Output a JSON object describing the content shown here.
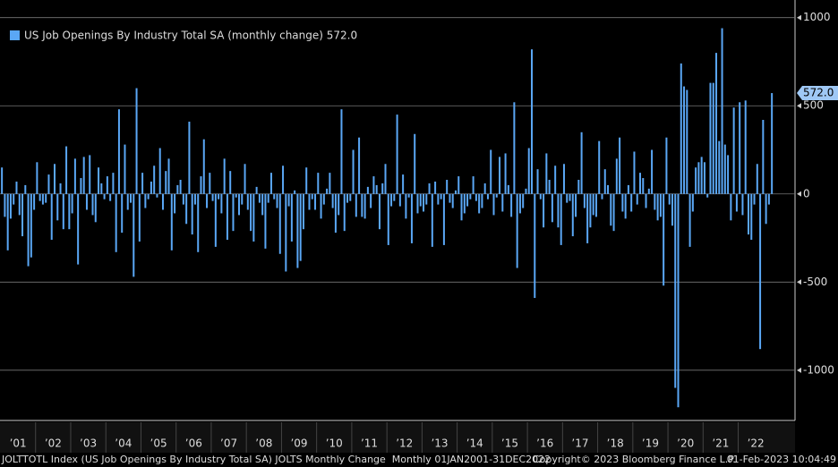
{
  "chart_data": {
    "type": "bar",
    "title": "US Job Openings By Industry Total SA (monthly change) 572.0",
    "color": "#5aa7f5",
    "year_labels": [
      "’01",
      "’02",
      "’03",
      "’04",
      "’05",
      "’06",
      "’07",
      "’08",
      "’09",
      "’10",
      "’11",
      "’12",
      "’13",
      "’14",
      "’15",
      "’16",
      "’17",
      "’18",
      "’19",
      "’20",
      "’21",
      "’22"
    ],
    "values": [
      150,
      -130,
      -320,
      -140,
      -60,
      70,
      -120,
      -240,
      50,
      -410,
      -360,
      -90,
      180,
      -40,
      -60,
      -50,
      110,
      -260,
      170,
      -150,
      60,
      -200,
      270,
      -200,
      -110,
      200,
      -400,
      90,
      210,
      -90,
      220,
      -120,
      -160,
      150,
      60,
      -30,
      100,
      -40,
      120,
      -330,
      480,
      -220,
      280,
      -90,
      -50,
      -470,
      600,
      -270,
      120,
      -80,
      -30,
      70,
      160,
      -20,
      260,
      -90,
      130,
      200,
      -320,
      -110,
      50,
      80,
      -60,
      -170,
      410,
      -230,
      -60,
      -330,
      100,
      310,
      -80,
      120,
      -40,
      -300,
      -30,
      -110,
      200,
      -260,
      130,
      -210,
      -20,
      -120,
      -60,
      170,
      -90,
      -210,
      -270,
      40,
      -50,
      -120,
      -310,
      -50,
      120,
      -30,
      -80,
      -340,
      160,
      -440,
      -70,
      -270,
      20,
      -420,
      -380,
      -200,
      150,
      -90,
      -30,
      -90,
      120,
      -140,
      -60,
      30,
      120,
      -80,
      -220,
      -120,
      480,
      -210,
      -50,
      -40,
      250,
      -130,
      320,
      -130,
      -140,
      40,
      -80,
      100,
      50,
      -200,
      60,
      170,
      -290,
      -70,
      -40,
      450,
      -70,
      110,
      -140,
      -20,
      -280,
      340,
      -110,
      -70,
      -100,
      -60,
      60,
      -300,
      70,
      -60,
      -30,
      -290,
      80,
      -50,
      -80,
      20,
      100,
      -150,
      -110,
      -70,
      -30,
      100,
      -40,
      -110,
      -80,
      60,
      -30,
      250,
      -120,
      -20,
      210,
      -100,
      230,
      50,
      -130,
      520,
      -420,
      -110,
      -80,
      30,
      260,
      820,
      -590,
      140,
      -30,
      -190,
      230,
      80,
      -160,
      160,
      -190,
      -290,
      170,
      -50,
      -40,
      -240,
      -130,
      80,
      350,
      -80,
      -280,
      -190,
      -120,
      -130,
      300,
      -30,
      140,
      50,
      -180,
      -210,
      200,
      320,
      -100,
      -140,
      50,
      -100,
      240,
      -60,
      120,
      90,
      -80,
      30,
      250,
      -90,
      -150,
      -130,
      -520,
      320,
      -60,
      -180,
      -1100,
      -1210,
      740,
      610,
      590,
      -300,
      -100,
      150,
      180,
      210,
      180,
      -20,
      630,
      630,
      800,
      300,
      940,
      280,
      220,
      -150,
      490,
      -100,
      520,
      -120,
      530,
      -230,
      -260,
      -60,
      170,
      -880,
      420,
      -170,
      -60,
      572
    ],
    "value_labels": [
      null,
      null,
      null,
      null,
      null,
      null,
      null,
      null,
      null,
      null,
      null,
      null,
      null,
      null,
      null,
      null,
      null,
      null,
      null,
      null,
      null,
      null,
      null,
      null,
      null,
      null,
      null,
      null,
      null,
      null,
      null,
      null,
      null,
      null,
      null,
      null,
      null,
      null,
      null,
      null,
      null,
      null,
      null,
      null,
      null,
      null,
      null,
      null,
      null,
      null,
      null,
      null,
      null,
      null,
      null,
      null,
      null,
      null,
      null,
      null,
      null,
      null,
      null,
      null,
      null,
      null,
      null,
      null,
      null,
      null,
      null,
      null,
      null,
      null,
      null,
      null,
      null,
      null,
      null,
      null,
      null,
      null,
      null,
      null,
      null,
      null,
      null,
      null,
      null,
      null,
      null,
      null,
      null,
      null,
      null,
      null,
      null,
      null,
      null,
      null,
      null,
      null,
      null,
      null,
      null,
      null,
      null,
      null,
      null,
      null,
      null,
      null,
      null,
      null,
      null,
      null,
      null,
      null,
      null,
      null,
      null,
      null,
      null,
      null,
      null,
      null,
      null,
      null,
      null,
      null,
      null,
      null,
      null,
      null,
      null,
      null,
      null,
      null,
      null,
      null,
      null,
      null,
      null,
      null,
      null,
      null,
      null,
      null,
      null,
      null,
      null,
      null,
      null,
      null,
      null,
      null,
      null,
      null,
      null,
      null,
      null,
      null,
      null,
      null,
      null,
      null,
      null,
      null,
      null,
      null,
      null,
      null,
      null,
      null,
      null,
      null,
      null,
      null,
      null,
      null,
      null,
      null,
      null,
      null,
      null,
      null,
      null,
      null,
      null,
      null,
      null,
      null,
      null,
      null,
      null,
      null,
      null,
      null,
      null,
      null,
      null,
      null,
      null,
      null,
      null,
      null,
      null,
      null,
      null,
      null,
      null,
      null,
      null,
      null,
      null,
      null,
      null,
      null,
      null,
      null,
      null,
      null,
      null,
      null,
      null,
      null,
      null,
      null,
      null,
      null,
      null,
      null,
      null,
      null,
      null,
      null,
      null,
      null,
      null,
      null,
      null,
      null,
      null,
      null,
      null,
      null,
      null,
      null,
      null,
      null,
      null,
      null,
      null,
      null,
      null,
      null,
      null,
      null,
      null,
      null,
      null,
      null,
      null,
      "572.0"
    ],
    "ylim": [
      -1285,
      1100
    ],
    "yticks": [
      1000,
      500,
      0,
      -500,
      -1000
    ],
    "grid": true,
    "footer": {
      "source": "JOLTTOTL Index (US Job Openings By Industry Total SA) JOLTS Monthly Change  Monthly 01JAN2001-31DEC2022",
      "copyright": "Copyright© 2023 Bloomberg Finance L.P.",
      "timestamp": "01-Feb-2023 10:04:49"
    }
  }
}
